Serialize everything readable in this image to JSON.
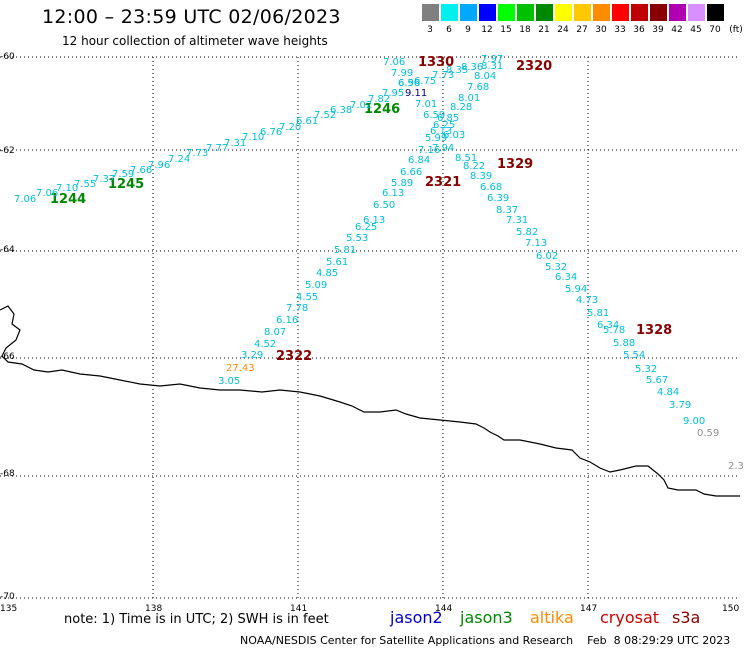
{
  "header": {
    "title": "12:00 – 23:59 UTC 02/06/2023",
    "subtitle": "12 hour collection of altimeter wave heights"
  },
  "legend": {
    "items": [
      {
        "color": "#808080",
        "label": "3"
      },
      {
        "color": "#00f0f0",
        "label": "6"
      },
      {
        "color": "#00a8ff",
        "label": "9"
      },
      {
        "color": "#0000ff",
        "label": "12"
      },
      {
        "color": "#00ff00",
        "label": "15"
      },
      {
        "color": "#00c000",
        "label": "18"
      },
      {
        "color": "#008800",
        "label": "21"
      },
      {
        "color": "#ffff00",
        "label": "24"
      },
      {
        "color": "#ffc800",
        "label": "27"
      },
      {
        "color": "#ff8c00",
        "label": "30"
      },
      {
        "color": "#ff0000",
        "label": "33"
      },
      {
        "color": "#c00000",
        "label": "36"
      },
      {
        "color": "#880000",
        "label": "39"
      },
      {
        "color": "#b000b0",
        "label": "42"
      },
      {
        "color": "#d890ff",
        "label": "45"
      },
      {
        "color": "#000000",
        "label": "70"
      }
    ],
    "unit": "(ft)"
  },
  "axes": {
    "lat_labels": [
      "-60",
      "-62",
      "-64",
      "-66",
      "-68",
      "-70"
    ],
    "lon_labels": [
      "135",
      "138",
      "141",
      "144",
      "147",
      "150"
    ]
  },
  "note": "note: 1) Time is in UTC; 2) SWH is in feet",
  "satellites": [
    {
      "name": "jason2",
      "color": "#0000cc"
    },
    {
      "name": "jason3",
      "color": "#008800"
    },
    {
      "name": "altika",
      "color": "#ff8c00"
    },
    {
      "name": "cryosat",
      "color": "#cc0000"
    },
    {
      "name": "s3a",
      "color": "#880000"
    }
  ],
  "credit": "NOAA/NESDIS Center for Satellite Applications and Research    Feb  8 08:29:29 UTC 2023",
  "colors": {
    "cyan": "#00bfd8",
    "orange": "#ff9000",
    "gray": "#909090",
    "green": "#008800",
    "maroon": "#880000",
    "timeGreen": "#008800"
  },
  "map_data": {
    "time_labels": [
      {
        "text": "1330",
        "color": "maroon"
      },
      {
        "text": "2320",
        "color": "maroon"
      },
      {
        "text": "1246",
        "color": "timeGreen"
      },
      {
        "text": "1329",
        "color": "maroon"
      },
      {
        "text": "2321",
        "color": "maroon"
      },
      {
        "text": "1245",
        "color": "timeGreen"
      },
      {
        "text": "1244",
        "color": "timeGreen"
      },
      {
        "text": "1328",
        "color": "maroon"
      },
      {
        "text": "2322",
        "color": "maroon"
      }
    ],
    "swh_values": [
      {
        "text": "7.06",
        "c": "cyan"
      },
      {
        "text": "7.99",
        "c": "cyan"
      },
      {
        "text": "6.96",
        "c": "cyan"
      },
      {
        "text": "6.56",
        "c": "cyan"
      },
      {
        "text": "6.75",
        "c": "cyan"
      },
      {
        "text": "7.73",
        "c": "cyan"
      },
      {
        "text": "8.35",
        "c": "cyan"
      },
      {
        "text": "8.36",
        "c": "cyan"
      },
      {
        "text": "7.97",
        "c": "cyan"
      },
      {
        "text": "8.31",
        "c": "cyan"
      },
      {
        "text": "8.04",
        "c": "cyan"
      },
      {
        "text": "7.68",
        "c": "cyan"
      },
      {
        "text": "8.01",
        "c": "cyan"
      },
      {
        "text": "8.28",
        "c": "cyan"
      },
      {
        "text": "7.95",
        "c": "cyan"
      },
      {
        "text": "9.11",
        "c": "navy"
      },
      {
        "text": "7.82",
        "c": "cyan"
      },
      {
        "text": "7.01",
        "c": "cyan"
      },
      {
        "text": "7.02",
        "c": "cyan"
      },
      {
        "text": "6.38",
        "c": "cyan"
      },
      {
        "text": "6.59",
        "c": "cyan"
      },
      {
        "text": "6.85",
        "c": "cyan"
      },
      {
        "text": "7.52",
        "c": "cyan"
      },
      {
        "text": "6.61",
        "c": "cyan"
      },
      {
        "text": "7.20",
        "c": "cyan"
      },
      {
        "text": "6.76",
        "c": "cyan"
      },
      {
        "text": "7.10",
        "c": "cyan"
      },
      {
        "text": "7.31",
        "c": "cyan"
      },
      {
        "text": "7.77",
        "c": "cyan"
      },
      {
        "text": "6.25",
        "c": "cyan"
      },
      {
        "text": "6.13",
        "c": "cyan"
      },
      {
        "text": "6.03",
        "c": "cyan"
      },
      {
        "text": "5.99",
        "c": "cyan"
      },
      {
        "text": "7.16",
        "c": "cyan"
      },
      {
        "text": "7.94",
        "c": "cyan"
      },
      {
        "text": "7.73",
        "c": "cyan"
      },
      {
        "text": "7.24",
        "c": "cyan"
      },
      {
        "text": "8.51",
        "c": "cyan"
      },
      {
        "text": "7.96",
        "c": "cyan"
      },
      {
        "text": "6.84",
        "c": "cyan"
      },
      {
        "text": "8.22",
        "c": "cyan"
      },
      {
        "text": "7.66",
        "c": "cyan"
      },
      {
        "text": "7.59",
        "c": "cyan"
      },
      {
        "text": "6.66",
        "c": "cyan"
      },
      {
        "text": "8.39",
        "c": "cyan"
      },
      {
        "text": "7.37",
        "c": "cyan"
      },
      {
        "text": "7.55",
        "c": "cyan"
      },
      {
        "text": "5.89",
        "c": "cyan"
      },
      {
        "text": "6.68",
        "c": "cyan"
      },
      {
        "text": "7.10",
        "c": "cyan"
      },
      {
        "text": "7.06",
        "c": "cyan"
      },
      {
        "text": "6.13",
        "c": "cyan"
      },
      {
        "text": "6.39",
        "c": "cyan"
      },
      {
        "text": "7.06",
        "c": "cyan"
      },
      {
        "text": "6.50",
        "c": "cyan"
      },
      {
        "text": "8.37",
        "c": "cyan"
      },
      {
        "text": "6.13",
        "c": "cyan"
      },
      {
        "text": "7.31",
        "c": "cyan"
      },
      {
        "text": "6.25",
        "c": "cyan"
      },
      {
        "text": "5.82",
        "c": "cyan"
      },
      {
        "text": "5.53",
        "c": "cyan"
      },
      {
        "text": "7.13",
        "c": "cyan"
      },
      {
        "text": "5.81",
        "c": "cyan"
      },
      {
        "text": "6.02",
        "c": "cyan"
      },
      {
        "text": "5.61",
        "c": "cyan"
      },
      {
        "text": "5.32",
        "c": "cyan"
      },
      {
        "text": "4.85",
        "c": "cyan"
      },
      {
        "text": "6.34",
        "c": "cyan"
      },
      {
        "text": "5.09",
        "c": "cyan"
      },
      {
        "text": "5.94",
        "c": "cyan"
      },
      {
        "text": "4.55",
        "c": "cyan"
      },
      {
        "text": "4.73",
        "c": "cyan"
      },
      {
        "text": "7.78",
        "c": "cyan"
      },
      {
        "text": "5.81",
        "c": "cyan"
      },
      {
        "text": "6.16",
        "c": "cyan"
      },
      {
        "text": "6.34",
        "c": "cyan"
      },
      {
        "text": "5.78",
        "c": "cyan"
      },
      {
        "text": "8.07",
        "c": "cyan"
      },
      {
        "text": "5.88",
        "c": "cyan"
      },
      {
        "text": "4.52",
        "c": "cyan"
      },
      {
        "text": "5.54",
        "c": "cyan"
      },
      {
        "text": "3.29",
        "c": "cyan"
      },
      {
        "text": "5.32",
        "c": "cyan"
      },
      {
        "text": "27.43",
        "c": "orange"
      },
      {
        "text": "5.67",
        "c": "cyan"
      },
      {
        "text": "3.05",
        "c": "cyan"
      },
      {
        "text": "4.84",
        "c": "cyan"
      },
      {
        "text": "3.79",
        "c": "cyan"
      },
      {
        "text": "9.00",
        "c": "cyan"
      },
      {
        "text": "0.59",
        "c": "gray"
      },
      {
        "text": "2.3",
        "c": "gray"
      }
    ]
  }
}
